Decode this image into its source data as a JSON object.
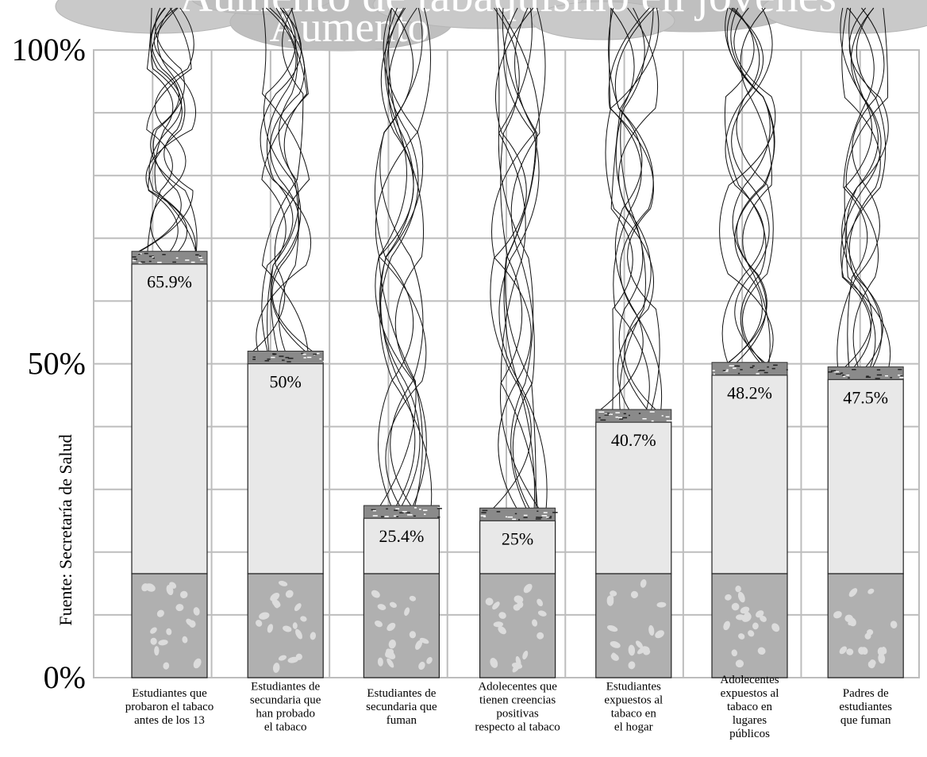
{
  "chart_data": {
    "type": "bar",
    "title": "Aumento de tabaquismo en jóvenes",
    "subtitle": "Aumento",
    "ylabel": "Fuente: Secretaría de Salud",
    "xlabel": "",
    "ylim": [
      0,
      100
    ],
    "y_ticks": [
      "0%",
      "50%",
      "100%"
    ],
    "grid": true,
    "legend": "none",
    "categories": [
      [
        "Estudiantes  que",
        "probaron el tabaco",
        "antes de los 13"
      ],
      [
        "Estudiantes de",
        "secundaria que",
        "han probado",
        "el tabaco"
      ],
      [
        "Estudiantes de",
        "secundaria que",
        "fuman"
      ],
      [
        "Adolecentes que",
        "tienen creencias",
        "positivas",
        "respecto al tabaco"
      ],
      [
        "Estudiantes",
        "expuestos al",
        "tabaco en",
        "el hogar"
      ],
      [
        "Adolecentes",
        "expuestos al",
        "tabaco en",
        "lugares",
        "públicos"
      ],
      [
        "Padres de",
        "estudiantes",
        "que fuman"
      ]
    ],
    "values": [
      65.9,
      50,
      25.4,
      25,
      40.7,
      48.2,
      47.5
    ],
    "value_labels": [
      "65.9%",
      "50%",
      "25.4%",
      "25%",
      "40.7%",
      "48.2%",
      "47.5%"
    ],
    "colors": {
      "bar_fill": "#e8e8e8",
      "filter_fill": "#b0b0b0",
      "ash_fill": "#8a8a8a",
      "grid": "#bdbdbd",
      "cloud": "#c9c9c9"
    }
  }
}
